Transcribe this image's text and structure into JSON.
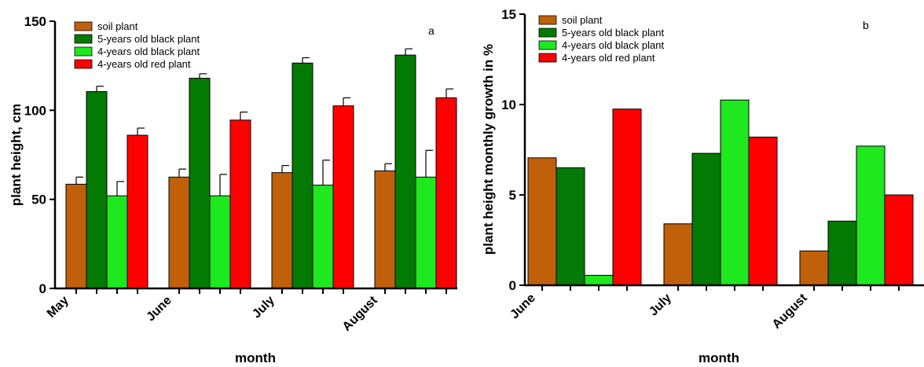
{
  "chart_data": [
    {
      "type": "bar",
      "panel_label": "a",
      "xlabel": "month",
      "ylabel": "plant height, cm",
      "ylim": [
        0,
        150
      ],
      "yticks": [
        0,
        50,
        100,
        150
      ],
      "categories": [
        "May",
        "June",
        "July",
        "August"
      ],
      "series": [
        {
          "name": "soil plant",
          "color": "#c0600a",
          "values": [
            58.5,
            62.5,
            65,
            66
          ],
          "errors": [
            4,
            4.5,
            4,
            4
          ]
        },
        {
          "name": "5-years old black plant",
          "color": "#037a03",
          "values": [
            110.5,
            118,
            126.5,
            131
          ],
          "errors": [
            3,
            2.5,
            3,
            3.5
          ]
        },
        {
          "name": "4-years old black plant",
          "color": "#1ee81e",
          "values": [
            52,
            52,
            58,
            62.5
          ],
          "errors": [
            8,
            12,
            14,
            15
          ]
        },
        {
          "name": "4-years old red plant",
          "color": "#ff0000",
          "values": [
            86,
            94.5,
            102.5,
            107
          ],
          "errors": [
            4,
            4.5,
            4.5,
            5
          ]
        }
      ],
      "legend_position": "top-left"
    },
    {
      "type": "bar",
      "panel_label": "b",
      "xlabel": "month",
      "ylabel": "plant height monthly growth in %",
      "ylim": [
        0,
        15
      ],
      "yticks": [
        0,
        5,
        10,
        15
      ],
      "categories": [
        "June",
        "July",
        "August"
      ],
      "series": [
        {
          "name": "soil plant",
          "color": "#c0600a",
          "values": [
            7.05,
            3.4,
            1.9
          ]
        },
        {
          "name": "5-years old black plant",
          "color": "#037a03",
          "values": [
            6.5,
            7.3,
            3.55
          ]
        },
        {
          "name": "4-years old black plant",
          "color": "#1ee81e",
          "values": [
            0.55,
            10.25,
            7.7
          ]
        },
        {
          "name": "4-years old red plant",
          "color": "#ff0000",
          "values": [
            9.75,
            8.2,
            5.0
          ]
        }
      ],
      "legend_position": "top-left"
    }
  ]
}
